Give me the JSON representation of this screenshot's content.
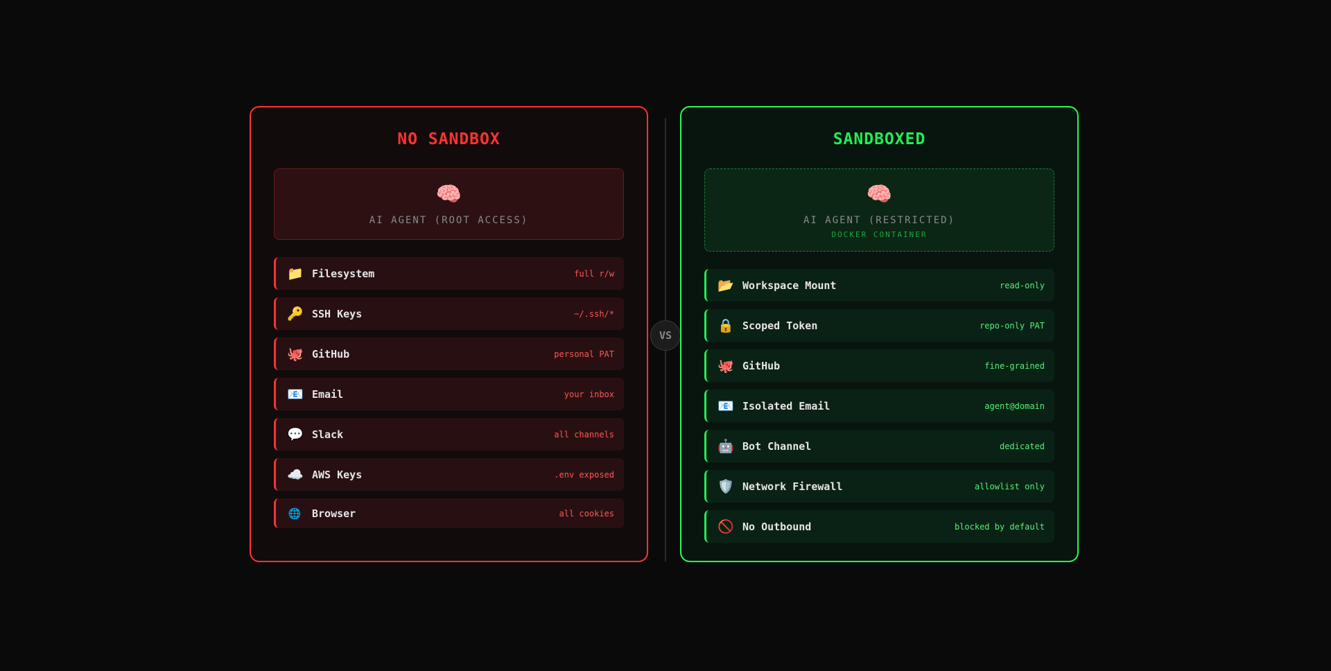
{
  "left": {
    "title": "NO SANDBOX",
    "agent_icon": "🧠",
    "agent_label": "AI AGENT (ROOT ACCESS)",
    "accent": "#ff3333",
    "items": [
      {
        "icon": "📁",
        "label": "Filesystem",
        "value": "full r/w"
      },
      {
        "icon": "🔑",
        "label": "SSH Keys",
        "value": "~/.ssh/*"
      },
      {
        "icon": "🐙",
        "label": "GitHub",
        "value": "personal PAT"
      },
      {
        "icon": "📧",
        "label": "Email",
        "value": "your inbox"
      },
      {
        "icon": "💬",
        "label": "Slack",
        "value": "all channels"
      },
      {
        "icon": "☁️",
        "label": "AWS Keys",
        "value": ".env exposed"
      },
      {
        "icon": "🌐",
        "label": "Browser",
        "value": "all cookies"
      }
    ]
  },
  "divider": {
    "label": "VS"
  },
  "right": {
    "title": "SANDBOXED",
    "agent_icon": "🧠",
    "agent_label": "AI AGENT (RESTRICTED)",
    "agent_sub": "DOCKER CONTAINER",
    "accent": "#22ee55",
    "items": [
      {
        "icon": "📂",
        "label": "Workspace Mount",
        "value": "read-only"
      },
      {
        "icon": "🔒",
        "label": "Scoped Token",
        "value": "repo-only PAT"
      },
      {
        "icon": "🐙",
        "label": "GitHub",
        "value": "fine-grained"
      },
      {
        "icon": "📧",
        "label": "Isolated Email",
        "value": "agent@domain"
      },
      {
        "icon": "🤖",
        "label": "Bot Channel",
        "value": "dedicated"
      },
      {
        "icon": "🛡️",
        "label": "Network Firewall",
        "value": "allowlist only"
      },
      {
        "icon": "🚫",
        "label": "No Outbound",
        "value": "blocked by default"
      }
    ]
  }
}
